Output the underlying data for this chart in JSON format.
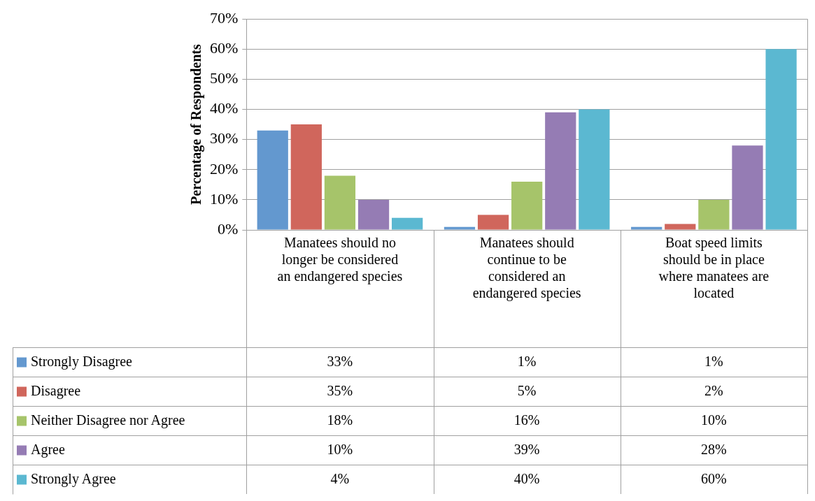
{
  "chart_data": {
    "type": "bar",
    "ylabel": "Percentage of Respondents",
    "categories": [
      "Manatees should no longer be considered an endangered species",
      "Manatees should continue to be considered an endangered species",
      "Boat speed limits should be in place where manatees are located"
    ],
    "series": [
      {
        "name": "Strongly Disagree",
        "color": "#6398cf",
        "values": [
          33,
          1,
          1
        ],
        "value_labels": [
          "33%",
          "1%",
          "1%"
        ]
      },
      {
        "name": "Disagree",
        "color": "#d0665c",
        "values": [
          35,
          5,
          2
        ],
        "value_labels": [
          "35%",
          "5%",
          "2%"
        ]
      },
      {
        "name": "Neither Disagree nor Agree",
        "color": "#a6c46a",
        "values": [
          18,
          16,
          10
        ],
        "value_labels": [
          "18%",
          "16%",
          "10%"
        ]
      },
      {
        "name": "Agree",
        "color": "#957cb4",
        "values": [
          10,
          39,
          28
        ],
        "value_labels": [
          "10%",
          "39%",
          "28%"
        ]
      },
      {
        "name": "Strongly Agree",
        "color": "#5bb8d1",
        "values": [
          4,
          40,
          60
        ],
        "value_labels": [
          "4%",
          "40%",
          "60%"
        ]
      }
    ],
    "ylim": [
      0,
      70
    ],
    "yticks": [
      {
        "value": 0,
        "label": "0%"
      },
      {
        "value": 10,
        "label": "10%"
      },
      {
        "value": 20,
        "label": "20%"
      },
      {
        "value": 30,
        "label": "30%"
      },
      {
        "value": 40,
        "label": "40%"
      },
      {
        "value": 50,
        "label": "50%"
      },
      {
        "value": 60,
        "label": "60%"
      },
      {
        "value": 70,
        "label": "70%"
      }
    ],
    "grid": "y",
    "legend": "bottom"
  }
}
